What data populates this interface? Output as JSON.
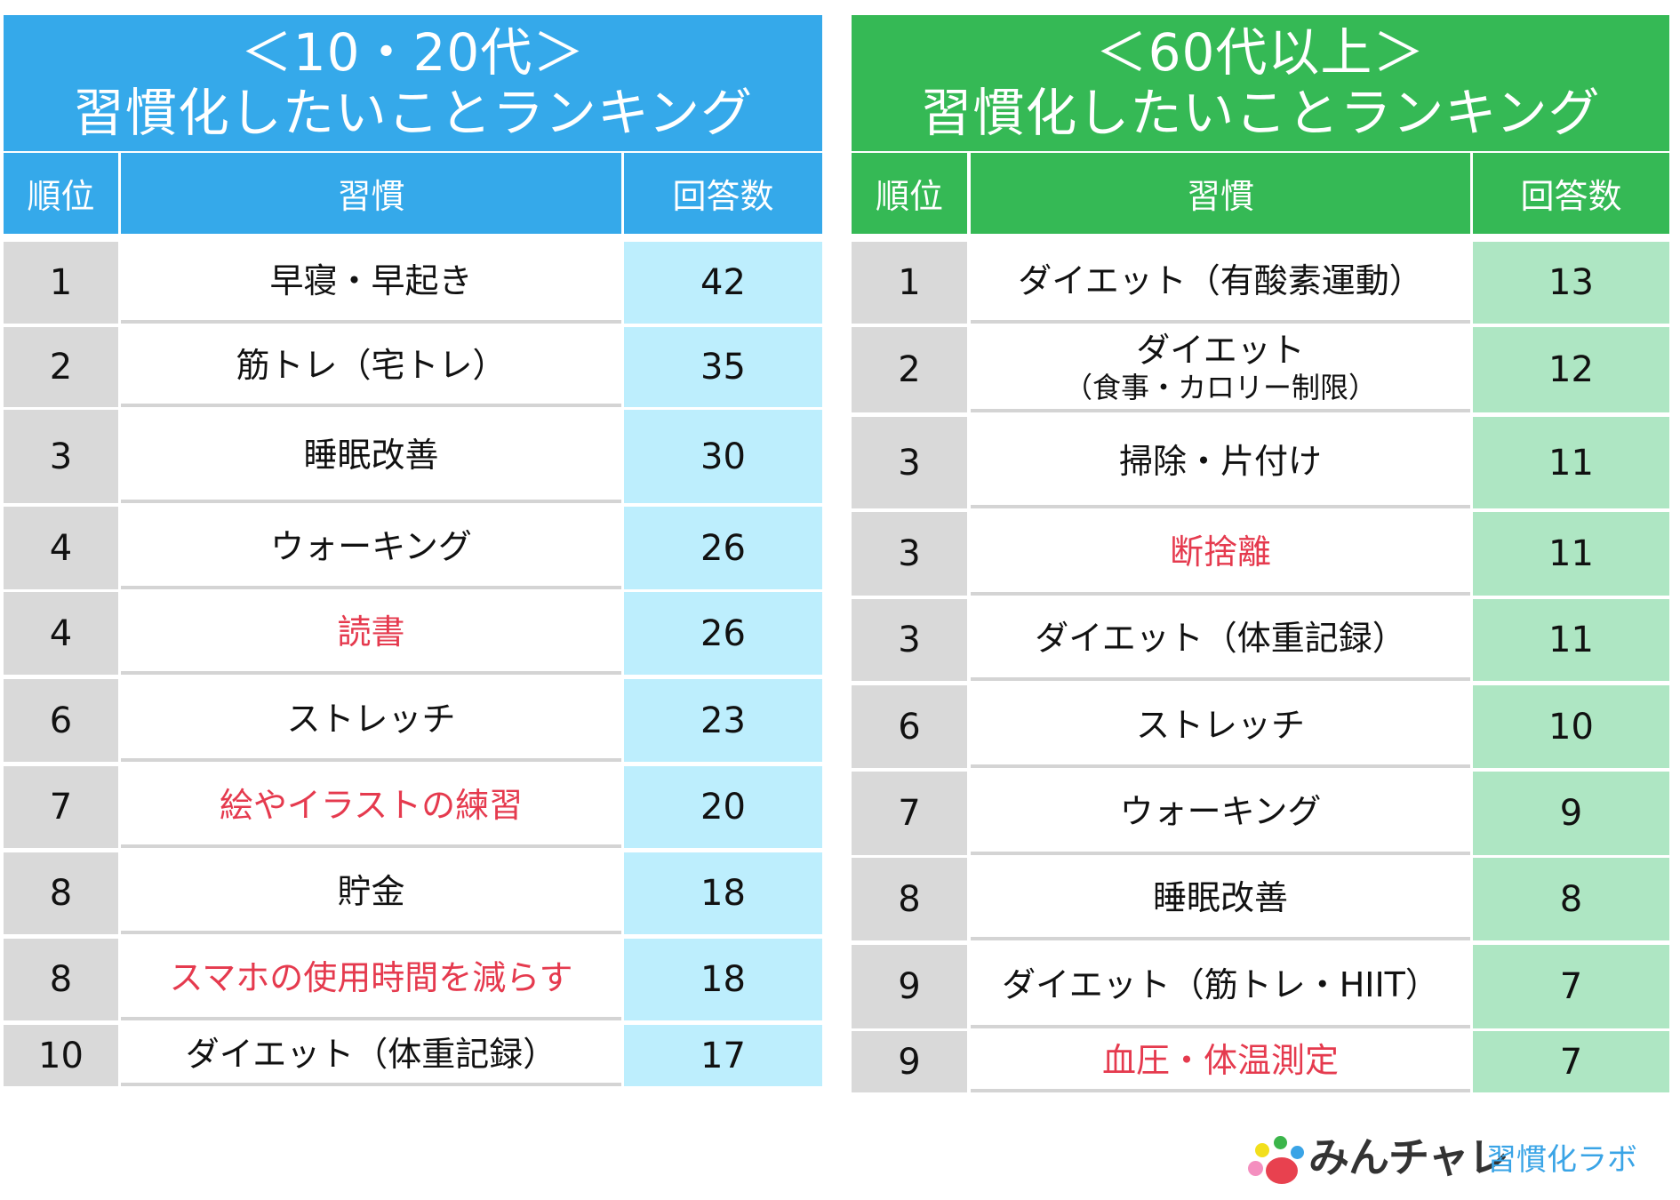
{
  "colors": {
    "blue": "#35a9ea",
    "light_blue": "#bdeefd",
    "green": "#35b955",
    "light_green": "#aee6c3",
    "gray": "#d9d9d9",
    "highlight_red": "#e53a4e"
  },
  "tables": [
    {
      "title_line1": "＜10・20代＞",
      "title_line2": "習慣化したいことランキング",
      "headers": {
        "rank": "順位",
        "habit": "習慣",
        "count": "回答数"
      },
      "rows": [
        {
          "rank": "1",
          "habit": "早寝・早起き",
          "count": "42",
          "highlight": false
        },
        {
          "rank": "2",
          "habit": "筋トレ（宅トレ）",
          "count": "35",
          "highlight": false
        },
        {
          "rank": "3",
          "habit": "睡眠改善",
          "count": "30",
          "highlight": false
        },
        {
          "rank": "4",
          "habit": "ウォーキング",
          "count": "26",
          "highlight": false
        },
        {
          "rank": "4",
          "habit": "読書",
          "count": "26",
          "highlight": true
        },
        {
          "rank": "6",
          "habit": "ストレッチ",
          "count": "23",
          "highlight": false
        },
        {
          "rank": "7",
          "habit": "絵やイラストの練習",
          "count": "20",
          "highlight": true
        },
        {
          "rank": "8",
          "habit": "貯金",
          "count": "18",
          "highlight": false
        },
        {
          "rank": "8",
          "habit": "スマホの使用時間を減らす",
          "count": "18",
          "highlight": true
        },
        {
          "rank": "10",
          "habit": "ダイエット（体重記録）",
          "count": "17",
          "highlight": false
        }
      ]
    },
    {
      "title_line1": "＜60代以上＞",
      "title_line2": "習慣化したいことランキング",
      "headers": {
        "rank": "順位",
        "habit": "習慣",
        "count": "回答数"
      },
      "rows": [
        {
          "rank": "1",
          "habit": "ダイエット（有酸素運動）",
          "count": "13",
          "highlight": false
        },
        {
          "rank": "2",
          "habit": "ダイエット",
          "habit_line2": "（食事・カロリー制限）",
          "count": "12",
          "highlight": false
        },
        {
          "rank": "3",
          "habit": "掃除・片付け",
          "count": "11",
          "highlight": false
        },
        {
          "rank": "3",
          "habit": "断捨離",
          "count": "11",
          "highlight": true
        },
        {
          "rank": "3",
          "habit": "ダイエット（体重記録）",
          "count": "11",
          "highlight": false
        },
        {
          "rank": "6",
          "habit": "ストレッチ",
          "count": "10",
          "highlight": false
        },
        {
          "rank": "7",
          "habit": "ウォーキング",
          "count": "9",
          "highlight": false
        },
        {
          "rank": "8",
          "habit": "睡眠改善",
          "count": "8",
          "highlight": false
        },
        {
          "rank": "9",
          "habit": "ダイエット（筋トレ・HIIT）",
          "count": "7",
          "highlight": false
        },
        {
          "rank": "9",
          "habit": "血圧・体温測定",
          "count": "7",
          "highlight": true
        }
      ]
    }
  ],
  "logo": {
    "brand": "みんチャレ",
    "sub": "習慣化ラボ"
  }
}
